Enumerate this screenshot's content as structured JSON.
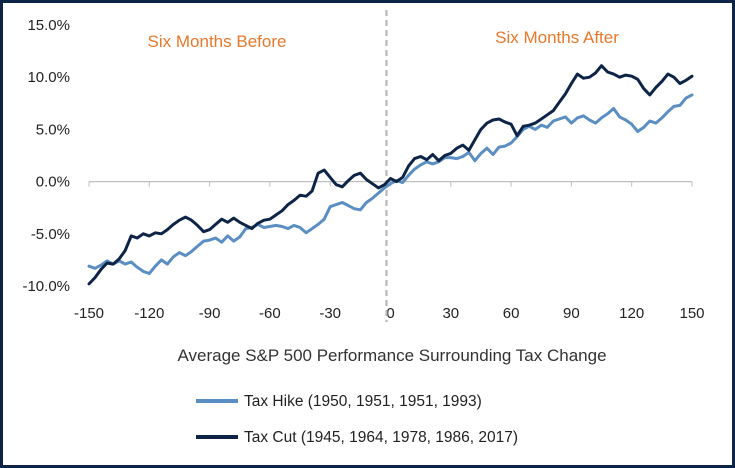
{
  "chart_data": {
    "type": "line",
    "title": "",
    "xlabel": "Average S&P 500 Performance Surrounding Tax Change",
    "ylabel": "",
    "xlim": [
      -150,
      150
    ],
    "ylim": [
      -10,
      15
    ],
    "x_ticks": [
      -150,
      -120,
      -90,
      -60,
      -30,
      0,
      30,
      60,
      90,
      120,
      150
    ],
    "x_tick_labels": [
      "-150",
      "-120",
      "-90",
      "-60",
      "-30",
      "0",
      "30",
      "60",
      "90",
      "120",
      "150"
    ],
    "y_ticks": [
      15,
      10,
      5,
      0,
      -5,
      -10
    ],
    "y_tick_labels": [
      "15.0%",
      "10.0%",
      "5.0%",
      "0.0%",
      "-5.0%",
      "-10.0%"
    ],
    "grid": false,
    "legend_position": "bottom",
    "annotations": {
      "before": "Six Months Before",
      "after": "Six Months After",
      "divider_x": -2
    },
    "colors": {
      "annotation": "#e8782a",
      "divider": "#b8b8b8",
      "border": "#0d2447"
    },
    "series": [
      {
        "name": "Tax Hike (1950, 1951, 1951, 1993)",
        "color": "#5b8ec2",
        "points": [
          [
            -150,
            -8.1
          ],
          [
            -147,
            -8.3
          ],
          [
            -144,
            -8.0
          ],
          [
            -141,
            -7.6
          ],
          [
            -138,
            -7.9
          ],
          [
            -135,
            -7.6
          ],
          [
            -132,
            -7.9
          ],
          [
            -129,
            -7.7
          ],
          [
            -126,
            -8.2
          ],
          [
            -123,
            -8.6
          ],
          [
            -120,
            -8.8
          ],
          [
            -117,
            -8.1
          ],
          [
            -114,
            -7.5
          ],
          [
            -111,
            -7.9
          ],
          [
            -108,
            -7.2
          ],
          [
            -105,
            -6.8
          ],
          [
            -102,
            -7.1
          ],
          [
            -99,
            -6.7
          ],
          [
            -96,
            -6.2
          ],
          [
            -93,
            -5.7
          ],
          [
            -90,
            -5.6
          ],
          [
            -87,
            -5.4
          ],
          [
            -84,
            -5.8
          ],
          [
            -81,
            -5.2
          ],
          [
            -78,
            -5.7
          ],
          [
            -75,
            -5.3
          ],
          [
            -72,
            -4.5
          ],
          [
            -69,
            -4.4
          ],
          [
            -66,
            -4.1
          ],
          [
            -63,
            -4.4
          ],
          [
            -60,
            -4.3
          ],
          [
            -57,
            -4.2
          ],
          [
            -54,
            -4.3
          ],
          [
            -51,
            -4.5
          ],
          [
            -48,
            -4.2
          ],
          [
            -45,
            -4.4
          ],
          [
            -42,
            -4.9
          ],
          [
            -39,
            -4.5
          ],
          [
            -36,
            -4.1
          ],
          [
            -33,
            -3.6
          ],
          [
            -30,
            -2.4
          ],
          [
            -27,
            -2.2
          ],
          [
            -24,
            -2.0
          ],
          [
            -21,
            -2.3
          ],
          [
            -18,
            -2.6
          ],
          [
            -15,
            -2.7
          ],
          [
            -12,
            -2.0
          ],
          [
            -9,
            -1.6
          ],
          [
            -6,
            -1.1
          ],
          [
            -3,
            -0.6
          ],
          [
            0,
            -0.2
          ],
          [
            3,
            0.1
          ],
          [
            6,
            -0.1
          ],
          [
            9,
            0.6
          ],
          [
            12,
            1.2
          ],
          [
            15,
            1.6
          ],
          [
            18,
            1.9
          ],
          [
            21,
            1.7
          ],
          [
            24,
            1.9
          ],
          [
            27,
            2.3
          ],
          [
            30,
            2.3
          ],
          [
            33,
            2.2
          ],
          [
            36,
            2.4
          ],
          [
            39,
            2.8
          ],
          [
            42,
            2.0
          ],
          [
            45,
            2.7
          ],
          [
            48,
            3.2
          ],
          [
            51,
            2.6
          ],
          [
            54,
            3.3
          ],
          [
            57,
            3.4
          ],
          [
            60,
            3.7
          ],
          [
            63,
            4.3
          ],
          [
            66,
            5.0
          ],
          [
            69,
            5.3
          ],
          [
            72,
            5.0
          ],
          [
            75,
            5.4
          ],
          [
            78,
            5.2
          ],
          [
            81,
            5.8
          ],
          [
            84,
            6.0
          ],
          [
            87,
            6.2
          ],
          [
            90,
            5.6
          ],
          [
            93,
            6.1
          ],
          [
            96,
            6.3
          ],
          [
            99,
            5.9
          ],
          [
            102,
            5.6
          ],
          [
            105,
            6.1
          ],
          [
            108,
            6.5
          ],
          [
            111,
            7.0
          ],
          [
            114,
            6.2
          ],
          [
            117,
            5.9
          ],
          [
            120,
            5.5
          ],
          [
            123,
            4.8
          ],
          [
            126,
            5.2
          ],
          [
            129,
            5.8
          ],
          [
            132,
            5.6
          ],
          [
            135,
            6.1
          ],
          [
            138,
            6.7
          ],
          [
            141,
            7.2
          ],
          [
            144,
            7.3
          ],
          [
            147,
            8.0
          ],
          [
            150,
            8.3
          ]
        ]
      },
      {
        "name": "Tax Cut (1945, 1964, 1978, 1986, 2017)",
        "color": "#0d2447",
        "points": [
          [
            -150,
            -9.8
          ],
          [
            -147,
            -9.2
          ],
          [
            -144,
            -8.4
          ],
          [
            -141,
            -7.8
          ],
          [
            -138,
            -7.9
          ],
          [
            -135,
            -7.4
          ],
          [
            -132,
            -6.6
          ],
          [
            -129,
            -5.2
          ],
          [
            -126,
            -5.4
          ],
          [
            -123,
            -5.0
          ],
          [
            -120,
            -5.2
          ],
          [
            -117,
            -4.9
          ],
          [
            -114,
            -5.0
          ],
          [
            -111,
            -4.6
          ],
          [
            -108,
            -4.1
          ],
          [
            -105,
            -3.7
          ],
          [
            -102,
            -3.4
          ],
          [
            -99,
            -3.7
          ],
          [
            -96,
            -4.2
          ],
          [
            -93,
            -4.8
          ],
          [
            -90,
            -4.6
          ],
          [
            -87,
            -4.1
          ],
          [
            -84,
            -3.6
          ],
          [
            -81,
            -3.9
          ],
          [
            -78,
            -3.5
          ],
          [
            -75,
            -3.9
          ],
          [
            -72,
            -4.2
          ],
          [
            -69,
            -4.5
          ],
          [
            -66,
            -4.0
          ],
          [
            -63,
            -3.7
          ],
          [
            -60,
            -3.6
          ],
          [
            -57,
            -3.2
          ],
          [
            -54,
            -2.8
          ],
          [
            -51,
            -2.2
          ],
          [
            -48,
            -1.8
          ],
          [
            -45,
            -1.3
          ],
          [
            -42,
            -1.4
          ],
          [
            -39,
            -0.9
          ],
          [
            -36,
            0.8
          ],
          [
            -33,
            1.1
          ],
          [
            -30,
            0.4
          ],
          [
            -27,
            -0.3
          ],
          [
            -24,
            -0.5
          ],
          [
            -21,
            0.1
          ],
          [
            -18,
            0.6
          ],
          [
            -15,
            0.8
          ],
          [
            -12,
            0.2
          ],
          [
            -9,
            -0.2
          ],
          [
            -6,
            -0.6
          ],
          [
            -3,
            -0.3
          ],
          [
            0,
            0.3
          ],
          [
            3,
            0.0
          ],
          [
            6,
            0.4
          ],
          [
            9,
            1.5
          ],
          [
            12,
            2.2
          ],
          [
            15,
            2.4
          ],
          [
            18,
            2.1
          ],
          [
            21,
            2.6
          ],
          [
            24,
            2.0
          ],
          [
            27,
            2.5
          ],
          [
            30,
            2.7
          ],
          [
            33,
            3.2
          ],
          [
            36,
            3.5
          ],
          [
            39,
            3.0
          ],
          [
            42,
            4.0
          ],
          [
            45,
            5.0
          ],
          [
            48,
            5.6
          ],
          [
            51,
            5.9
          ],
          [
            54,
            6.0
          ],
          [
            57,
            5.7
          ],
          [
            60,
            5.5
          ],
          [
            63,
            4.4
          ],
          [
            66,
            5.3
          ],
          [
            69,
            5.4
          ],
          [
            72,
            5.6
          ],
          [
            75,
            6.0
          ],
          [
            78,
            6.4
          ],
          [
            81,
            6.8
          ],
          [
            84,
            7.6
          ],
          [
            87,
            8.4
          ],
          [
            90,
            9.4
          ],
          [
            93,
            10.3
          ],
          [
            96,
            9.9
          ],
          [
            99,
            10.0
          ],
          [
            102,
            10.4
          ],
          [
            105,
            11.1
          ],
          [
            108,
            10.5
          ],
          [
            111,
            10.3
          ],
          [
            114,
            10.0
          ],
          [
            117,
            10.2
          ],
          [
            120,
            10.1
          ],
          [
            123,
            9.8
          ],
          [
            126,
            8.9
          ],
          [
            129,
            8.3
          ],
          [
            132,
            9.0
          ],
          [
            135,
            9.6
          ],
          [
            138,
            10.3
          ],
          [
            141,
            10.0
          ],
          [
            144,
            9.4
          ],
          [
            147,
            9.7
          ],
          [
            150,
            10.1
          ]
        ]
      }
    ]
  }
}
